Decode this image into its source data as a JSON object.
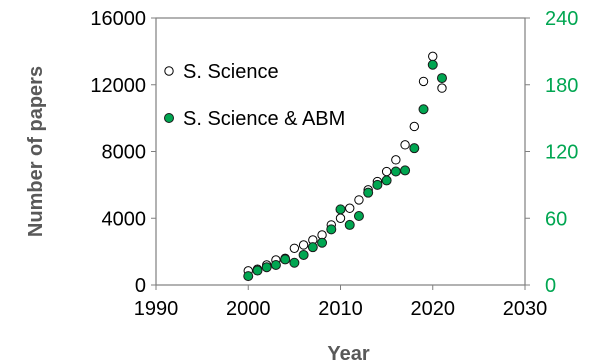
{
  "chart_data": {
    "type": "scatter",
    "title": "",
    "xlabel": "Year",
    "ylabel": "Number of papers",
    "y2label": "",
    "xlim": [
      1990,
      2030
    ],
    "ylim": [
      0,
      16000
    ],
    "y2lim": [
      0,
      240
    ],
    "x_ticks": [
      "1990",
      "2000",
      "2010",
      "2020",
      "2030"
    ],
    "y_ticks": [
      "0",
      "4000",
      "8000",
      "12000",
      "16000"
    ],
    "y2_ticks": [
      "0",
      "60",
      "120",
      "180",
      "240"
    ],
    "grid": false,
    "legend_position": "top-left",
    "colors": {
      "axis_left": "#000000",
      "axis_right": "#00a651",
      "series_2_fill": "#00a651",
      "series_1_stroke": "#000000",
      "axis_title": "#595959"
    },
    "series": [
      {
        "name": "S. Science",
        "axis": "left",
        "marker": "hollow-circle",
        "x": [
          2000,
          2001,
          2002,
          2003,
          2004,
          2005,
          2006,
          2007,
          2008,
          2009,
          2010,
          2011,
          2012,
          2013,
          2014,
          2015,
          2016,
          2017,
          2018,
          2019,
          2020,
          2021
        ],
        "y": [
          850,
          950,
          1200,
          1500,
          1600,
          2200,
          2400,
          2700,
          3000,
          3600,
          4000,
          4600,
          5100,
          5700,
          6200,
          6800,
          7500,
          8400,
          9500,
          12200,
          13700,
          11800
        ]
      },
      {
        "name": "S. Science & ABM",
        "axis": "right",
        "marker": "filled-circle",
        "x": [
          2000,
          2001,
          2002,
          2003,
          2004,
          2005,
          2006,
          2007,
          2008,
          2009,
          2010,
          2011,
          2012,
          2013,
          2014,
          2015,
          2016,
          2017,
          2018,
          2019,
          2020,
          2021
        ],
        "y": [
          8,
          13,
          16,
          18,
          23,
          20,
          27,
          34,
          38,
          50,
          68,
          54,
          62,
          83,
          90,
          94,
          102,
          103,
          123,
          158,
          198,
          186
        ]
      }
    ]
  }
}
